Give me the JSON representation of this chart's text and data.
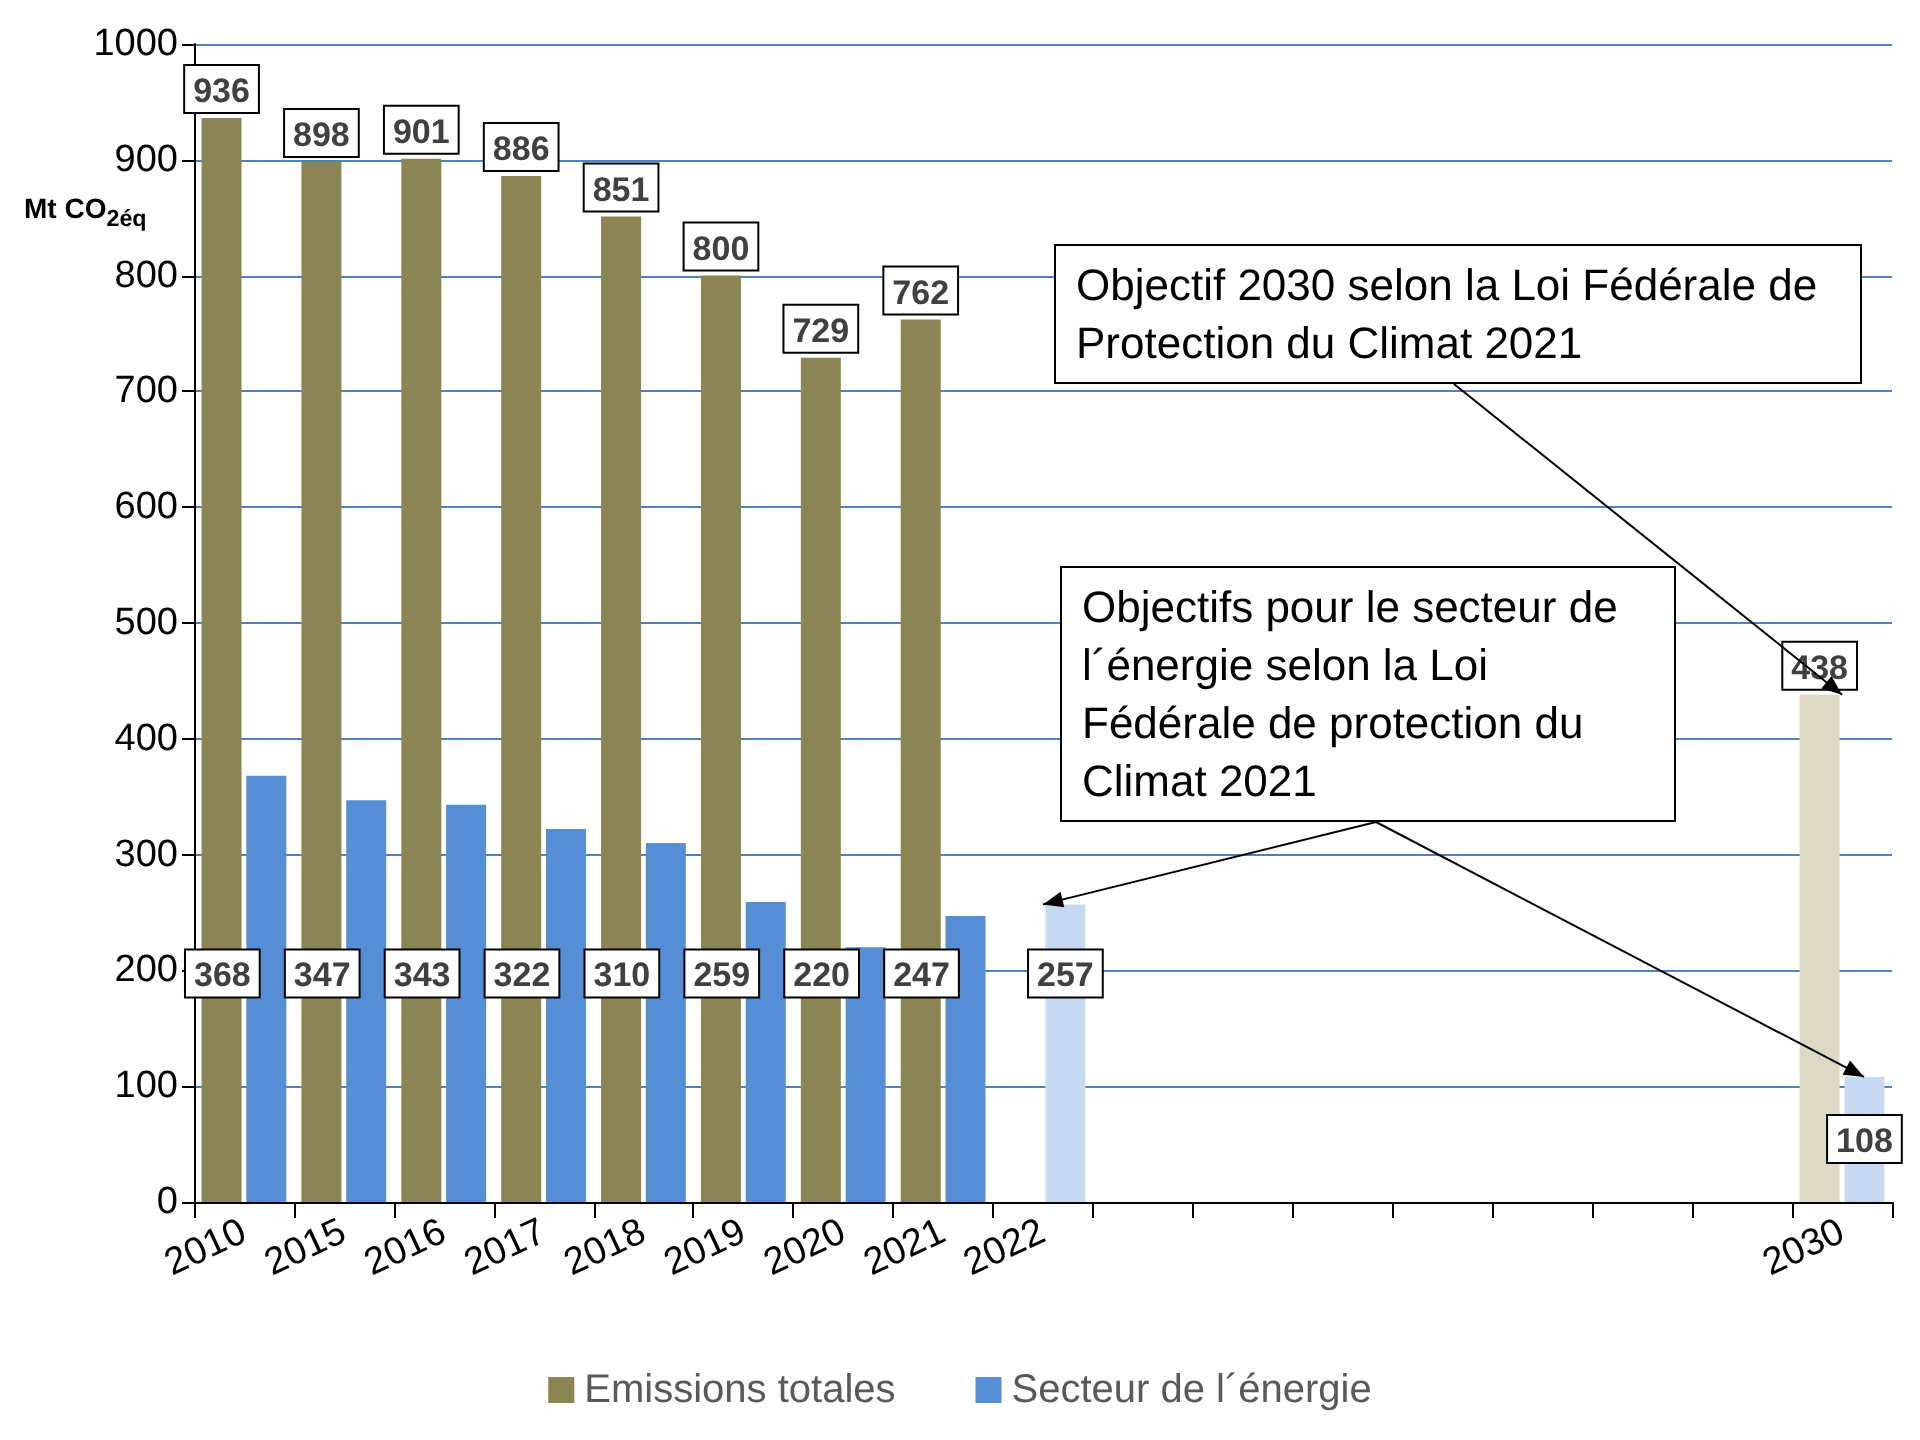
{
  "chart_data": {
    "type": "bar",
    "ylabel": "Mt CO$_{2éq}$",
    "categories": [
      "2010",
      "2015",
      "2016",
      "2017",
      "2018",
      "2019",
      "2020",
      "2021",
      "2022",
      null,
      null,
      null,
      null,
      null,
      null,
      null,
      "2030"
    ],
    "series": [
      {
        "name": "Emissions totales",
        "color": "#8b8453",
        "colors": [
          "#8b8453",
          "#8b8453",
          "#8b8453",
          "#8b8453",
          "#8b8453",
          "#8b8453",
          "#8b8453",
          "#8b8453",
          null,
          null,
          null,
          null,
          null,
          null,
          null,
          null,
          "#ddd9c4"
        ],
        "values": [
          936,
          898,
          901,
          886,
          851,
          800,
          729,
          762,
          null,
          null,
          null,
          null,
          null,
          null,
          null,
          null,
          438
        ]
      },
      {
        "name": "Secteur de l´énergie",
        "color": "#558ed5",
        "colors": [
          "#558ed5",
          "#558ed5",
          "#558ed5",
          "#558ed5",
          "#558ed5",
          "#558ed5",
          "#558ed5",
          "#558ed5",
          "#c6d9f1",
          null,
          null,
          null,
          null,
          null,
          null,
          null,
          "#c6d9f1"
        ],
        "values": [
          368,
          347,
          343,
          322,
          310,
          259,
          220,
          247,
          257,
          null,
          null,
          null,
          null,
          null,
          null,
          null,
          108
        ]
      }
    ],
    "ylim": [
      0,
      1000
    ],
    "yticks": [
      0,
      100,
      200,
      300,
      400,
      500,
      600,
      700,
      800,
      900,
      {
        "value": 1000,
        "label": "1000"
      }
    ],
    "grid": "y",
    "legend": "bottom",
    "data_labels": true,
    "annotations": [
      {
        "text": "Objectif 2030 selon la Loi Fédérale de Protection du Climat 2021",
        "x": "2030",
        "y": 438
      },
      {
        "text": "Objectifs pour le secteur de l´énergie selon la Loi Fédérale de protection du Climat 2021",
        "x": "2022",
        "y": 257
      }
    ]
  }
}
